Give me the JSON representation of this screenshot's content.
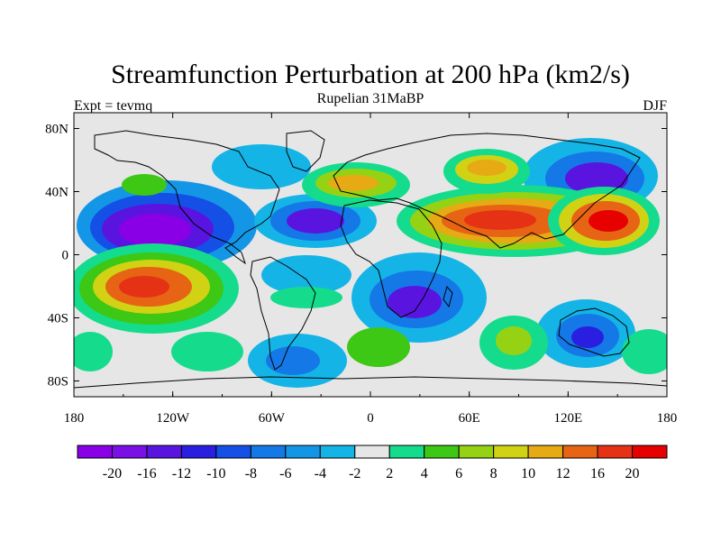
{
  "title": "Streamfunction Perturbation at 200 hPa (km2/s)",
  "subtitle": "Rupelian  31MaBP",
  "left_label": "Expt = tevmq",
  "right_label": "DJF",
  "map": {
    "lon_ticks": [
      "180",
      "120W",
      "60W",
      "0",
      "60E",
      "120E",
      "180"
    ],
    "lat_ticks": [
      "80N",
      "40N",
      "0",
      "40S",
      "80S"
    ],
    "background_color": "#e6e6e6",
    "coastline_color": "#000000"
  },
  "colorbar": {
    "colors": [
      "#8a00e6",
      "#7a10e6",
      "#5a14e0",
      "#2a1ee0",
      "#1450e6",
      "#1478e6",
      "#1496e6",
      "#14b4e6",
      "#e6e6e6",
      "#14dc8c",
      "#3cc814",
      "#96d214",
      "#d2d214",
      "#e6aa14",
      "#e66414",
      "#e63214",
      "#e60000"
    ],
    "labels": [
      "-20",
      "-16",
      "-12",
      "-10",
      "-8",
      "-6",
      "-4",
      "-2",
      "2",
      "4",
      "6",
      "8",
      "10",
      "12",
      "16",
      "20"
    ]
  }
}
